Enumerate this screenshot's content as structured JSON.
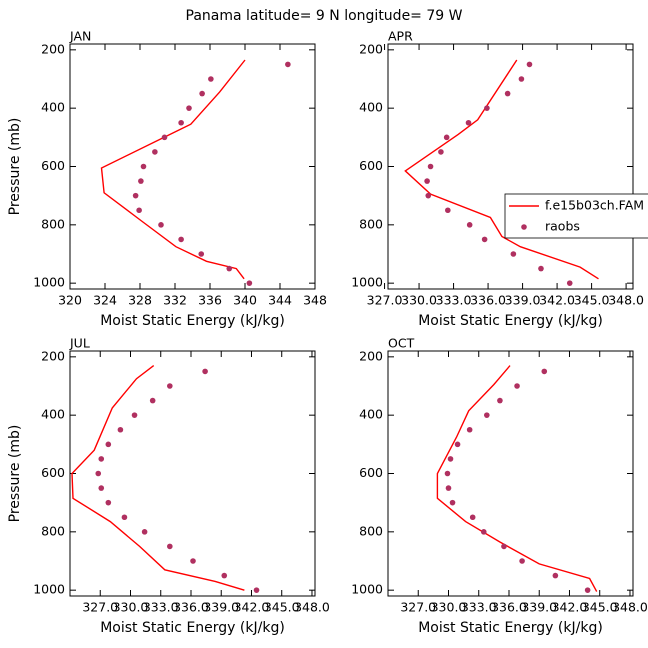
{
  "title": "Panama  latitude= 9 N longitude= 79 W",
  "chart_data": [
    {
      "type": "line",
      "panel": "JAN",
      "xlabel": "Moist Static Energy (kJ/kg)",
      "ylabel": "Pressure (mb)",
      "xlim": [
        320,
        348
      ],
      "xticks": [
        320,
        324,
        328,
        332,
        336,
        340,
        344,
        348
      ],
      "ylim": [
        180,
        1020
      ],
      "y_inverted": true,
      "yticks": [
        200,
        400,
        600,
        800,
        1000
      ],
      "series": [
        {
          "style": "line",
          "color": "#ff0000",
          "x": [
            340.0,
            337.1,
            333.8,
            323.6,
            323.9,
            328.1,
            332.1,
            335.6,
            339.0,
            339.9
          ],
          "y": [
            235,
            345,
            455,
            605,
            690,
            785,
            875,
            925,
            950,
            985
          ]
        },
        {
          "style": "markers",
          "color": "#b03060",
          "x": [
            344.9,
            336.1,
            335.1,
            333.6,
            332.7,
            330.8,
            329.7,
            328.4,
            328.1,
            327.5,
            327.9,
            330.4,
            332.7,
            335.0,
            338.2,
            340.5
          ],
          "y": [
            250,
            300,
            350,
            400,
            450,
            500,
            550,
            600,
            650,
            700,
            750,
            800,
            850,
            900,
            950,
            1000
          ]
        }
      ]
    },
    {
      "type": "line",
      "panel": "APR",
      "xlabel": "Moist Static Energy (kJ/kg)",
      "xlim": [
        327.3,
        348.6
      ],
      "xticks": [
        {
          "value": 327,
          "label": "327.0"
        },
        {
          "value": 330,
          "label": "330.0"
        },
        {
          "value": 333,
          "label": "333.0"
        },
        {
          "value": 336,
          "label": "336.0"
        },
        {
          "value": 339,
          "label": "339.0"
        },
        {
          "value": 342,
          "label": "342.0"
        },
        {
          "value": 345,
          "label": "345.0"
        },
        {
          "value": 348,
          "label": "348.0"
        }
      ],
      "ylim": [
        180,
        1020
      ],
      "y_inverted": true,
      "yticks": [
        200,
        400,
        600,
        800,
        1000
      ],
      "legend": "right",
      "series": [
        {
          "name": "f.e15b03ch.FAM",
          "style": "line",
          "color": "#ff0000",
          "x": [
            338.5,
            335.1,
            333.4,
            328.8,
            331.0,
            336.2,
            337.2,
            338.8,
            344.0,
            345.6
          ],
          "y": [
            235,
            440,
            490,
            615,
            695,
            775,
            840,
            875,
            945,
            985
          ]
        },
        {
          "name": "raobs",
          "style": "markers",
          "color": "#b03060",
          "x": [
            339.6,
            338.9,
            337.7,
            335.9,
            334.3,
            332.4,
            331.9,
            331.0,
            330.7,
            330.8,
            332.5,
            334.4,
            335.7,
            338.2,
            340.6,
            343.1
          ],
          "y": [
            250,
            300,
            350,
            400,
            450,
            500,
            550,
            600,
            650,
            700,
            750,
            800,
            850,
            900,
            950,
            1000
          ]
        }
      ]
    },
    {
      "type": "line",
      "panel": "JUL",
      "xlabel": "Moist Static Energy (kJ/kg)",
      "ylabel": "Pressure (mb)",
      "xlim": [
        324,
        348.3
      ],
      "xticks": [
        {
          "value": 327,
          "label": "327.0"
        },
        {
          "value": 330,
          "label": "330.0"
        },
        {
          "value": 333,
          "label": "333.0"
        },
        {
          "value": 336,
          "label": "336.0"
        },
        {
          "value": 339,
          "label": "339.0"
        },
        {
          "value": 342,
          "label": "342.0"
        },
        {
          "value": 345,
          "label": "345.0"
        },
        {
          "value": 348,
          "label": "348.0"
        }
      ],
      "ylim": [
        180,
        1020
      ],
      "y_inverted": true,
      "yticks": [
        200,
        400,
        600,
        800,
        1000
      ],
      "series": [
        {
          "style": "line",
          "color": "#ff0000",
          "x": [
            332.3,
            330.6,
            328.2,
            326.4,
            324.2,
            324.3,
            328.0,
            330.9,
            333.4,
            338.4,
            341.3
          ],
          "y": [
            230,
            275,
            375,
            520,
            600,
            685,
            765,
            850,
            930,
            970,
            1000
          ]
        },
        {
          "style": "markers",
          "color": "#b03060",
          "x": [
            337.4,
            333.9,
            332.2,
            330.4,
            329.0,
            327.8,
            327.1,
            326.8,
            327.1,
            327.8,
            329.4,
            331.4,
            333.9,
            336.2,
            339.3,
            342.5
          ],
          "y": [
            250,
            300,
            350,
            400,
            450,
            500,
            550,
            600,
            650,
            700,
            750,
            800,
            850,
            900,
            950,
            1000
          ]
        }
      ]
    },
    {
      "type": "line",
      "panel": "OCT",
      "xlabel": "Moist Static Energy (kJ/kg)",
      "xlim": [
        324,
        348.3
      ],
      "xticks": [
        {
          "value": 327,
          "label": "327.0"
        },
        {
          "value": 330,
          "label": "330.0"
        },
        {
          "value": 333,
          "label": "333.0"
        },
        {
          "value": 336,
          "label": "336.0"
        },
        {
          "value": 339,
          "label": "339.0"
        },
        {
          "value": 342,
          "label": "342.0"
        },
        {
          "value": 345,
          "label": "345.0"
        },
        {
          "value": 348,
          "label": "348.0"
        }
      ],
      "ylim": [
        180,
        1020
      ],
      "y_inverted": true,
      "yticks": [
        200,
        400,
        600,
        800,
        1000
      ],
      "series": [
        {
          "style": "line",
          "color": "#ff0000",
          "x": [
            336.1,
            334.5,
            332.0,
            330.8,
            328.9,
            328.9,
            331.7,
            335.1,
            339.0,
            344.0,
            344.7
          ],
          "y": [
            230,
            295,
            385,
            475,
            600,
            685,
            765,
            835,
            910,
            960,
            1005
          ]
        },
        {
          "style": "markers",
          "color": "#b03060",
          "x": [
            339.5,
            336.8,
            335.1,
            333.8,
            332.1,
            330.9,
            330.2,
            329.9,
            330.0,
            330.4,
            332.4,
            333.5,
            335.5,
            337.3,
            340.6,
            343.8
          ],
          "y": [
            250,
            300,
            350,
            400,
            450,
            500,
            550,
            600,
            650,
            700,
            750,
            800,
            850,
            900,
            950,
            1000
          ]
        }
      ]
    }
  ]
}
